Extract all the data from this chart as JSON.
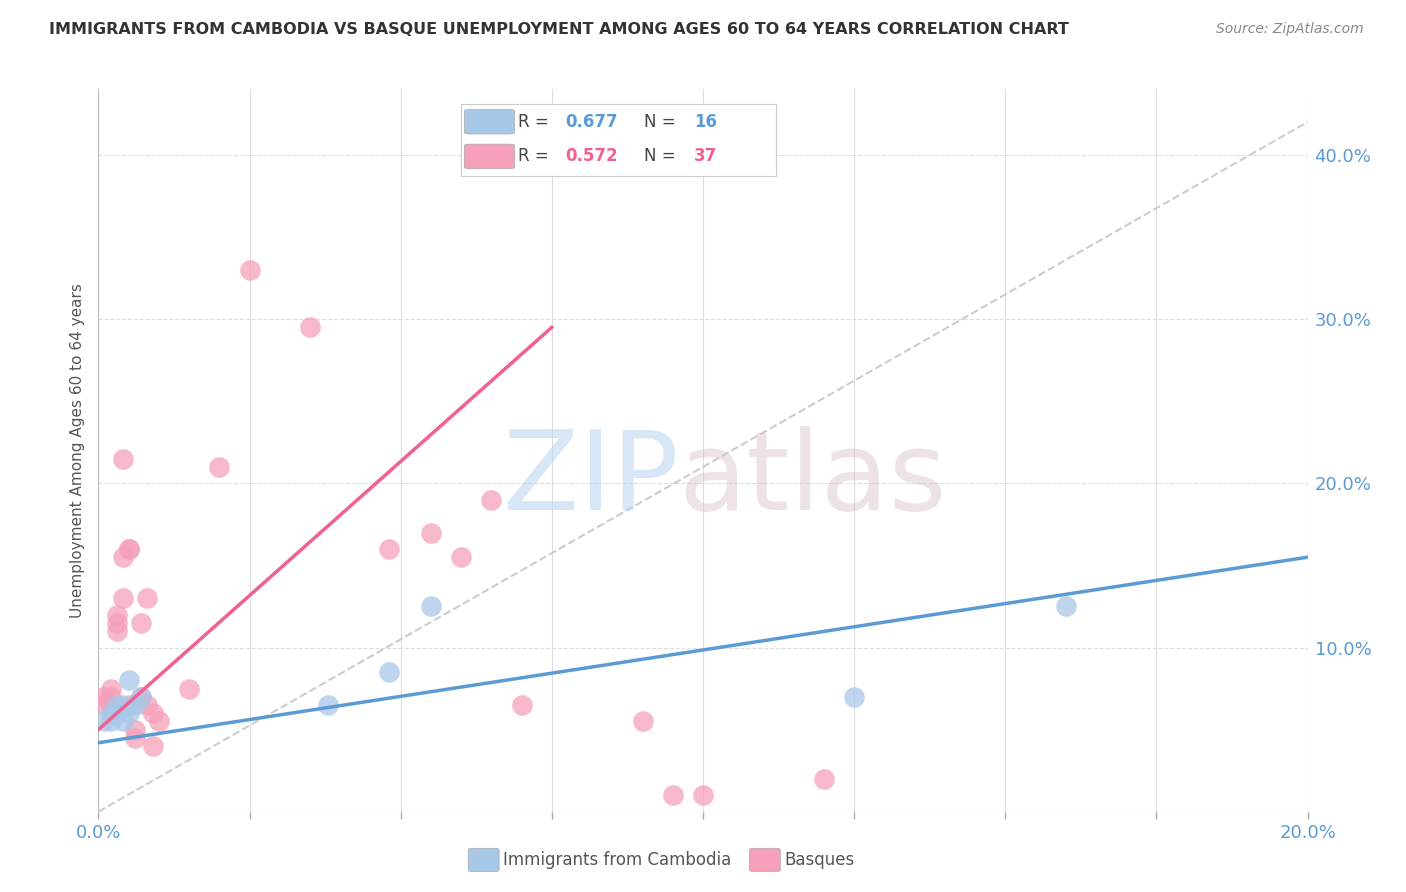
{
  "title": "IMMIGRANTS FROM CAMBODIA VS BASQUE UNEMPLOYMENT AMONG AGES 60 TO 64 YEARS CORRELATION CHART",
  "source": "Source: ZipAtlas.com",
  "ylabel": "Unemployment Among Ages 60 to 64 years",
  "xlim": [
    0.0,
    0.2
  ],
  "ylim": [
    0.0,
    0.44
  ],
  "xticks": [
    0.0,
    0.025,
    0.05,
    0.075,
    0.1,
    0.125,
    0.15,
    0.175,
    0.2
  ],
  "yticks_right": [
    0.0,
    0.1,
    0.2,
    0.3,
    0.4
  ],
  "blue_color": "#A8C8E8",
  "pink_color": "#F5A0B8",
  "blue_line_color": "#5B9BD5",
  "pink_line_color": "#F06090",
  "diagonal_color": "#CCCCCC",
  "blue_scatter_x": [
    0.001,
    0.002,
    0.002,
    0.003,
    0.003,
    0.004,
    0.004,
    0.005,
    0.005,
    0.006,
    0.007,
    0.038,
    0.048,
    0.055,
    0.125,
    0.16
  ],
  "blue_scatter_y": [
    0.055,
    0.055,
    0.06,
    0.06,
    0.065,
    0.055,
    0.065,
    0.06,
    0.08,
    0.065,
    0.07,
    0.065,
    0.085,
    0.125,
    0.07,
    0.125
  ],
  "pink_scatter_x": [
    0.001,
    0.001,
    0.002,
    0.002,
    0.002,
    0.003,
    0.003,
    0.003,
    0.004,
    0.004,
    0.004,
    0.005,
    0.005,
    0.005,
    0.006,
    0.006,
    0.007,
    0.007,
    0.008,
    0.008,
    0.009,
    0.009,
    0.01,
    0.015,
    0.02,
    0.025,
    0.035,
    0.048,
    0.055,
    0.06,
    0.065,
    0.07,
    0.09,
    0.095,
    0.1,
    0.12
  ],
  "pink_scatter_y": [
    0.07,
    0.065,
    0.065,
    0.07,
    0.075,
    0.11,
    0.115,
    0.12,
    0.13,
    0.155,
    0.215,
    0.16,
    0.16,
    0.065,
    0.045,
    0.05,
    0.07,
    0.115,
    0.13,
    0.065,
    0.04,
    0.06,
    0.055,
    0.075,
    0.21,
    0.33,
    0.295,
    0.16,
    0.17,
    0.155,
    0.19,
    0.065,
    0.055,
    0.01,
    0.01,
    0.02
  ],
  "blue_line_x": [
    0.0,
    0.2
  ],
  "blue_line_y": [
    0.042,
    0.155
  ],
  "pink_line_x": [
    0.0,
    0.075
  ],
  "pink_line_y": [
    0.05,
    0.295
  ],
  "diagonal_line_x": [
    0.0,
    0.2
  ],
  "diagonal_line_y": [
    0.0,
    0.42
  ]
}
